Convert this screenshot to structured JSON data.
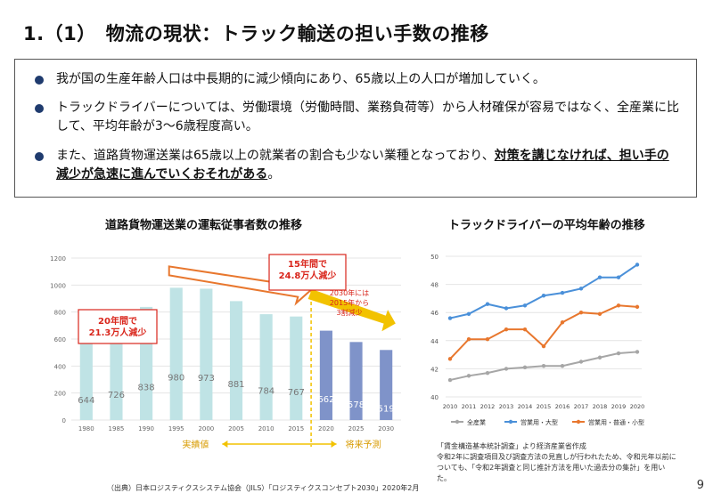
{
  "title": "1.（1）　物流の現状：トラック輸送の担い手数の推移",
  "bullets": [
    {
      "text": "我が国の生産年齢人口は中長期的に減少傾向にあり、65歳以上の人口が増加していく。"
    },
    {
      "text": "トラックドライバーについては、労働環境（労働時間、業務負荷等）から人材確保が容易ではなく、全産業に比して、平均年齢が3～6歳程度高い。"
    },
    {
      "text": "また、道路貨物運送業は65歳以上の就業者の割合も少ない業種となっており、",
      "emph": "対策を講じなければ、担い手の減少が急速に進んでいくおそれがある",
      "tail": "。"
    }
  ],
  "left_chart_title": "道路貨物運送業の運転従事者数の推移",
  "right_chart_title": "トラックドライバーの平均年齢の推移",
  "chart_data": [
    {
      "type": "bar",
      "categories": [
        "1980",
        "1985",
        "1990",
        "1995",
        "2000",
        "2005",
        "2010",
        "2015",
        "2020",
        "2025",
        "2030"
      ],
      "values": [
        644,
        726,
        838,
        980,
        973,
        881,
        784,
        767,
        662,
        578,
        519
      ],
      "ylim": [
        0,
        1200
      ],
      "yticks": [
        0,
        200,
        400,
        600,
        800,
        1000,
        1200
      ],
      "colors": {
        "actual": "#bfe3e5",
        "forecast": "#7f93c9"
      },
      "segments": {
        "actual_label": "実績値",
        "forecast_label": "将来予測"
      },
      "annotations": {
        "past": "20年間で\n21.3万人減少",
        "future": "15年間で\n24.8万人減少",
        "forecast_note": "2030年には\n2015年から\n3割減少"
      }
    },
    {
      "type": "line",
      "x": [
        "2010",
        "2011",
        "2012",
        "2013",
        "2014",
        "2015",
        "2016",
        "2017",
        "2018",
        "2019",
        "2020"
      ],
      "ylim": [
        40,
        50
      ],
      "yticks": [
        40,
        42,
        44,
        46,
        48,
        50
      ],
      "series": [
        {
          "name": "全産業",
          "color": "#a6a6a6",
          "values": [
            41.2,
            41.5,
            41.7,
            42.0,
            42.1,
            42.2,
            42.2,
            42.5,
            42.8,
            43.1,
            43.2
          ]
        },
        {
          "name": "営業用・大型",
          "color": "#4a90d9",
          "values": [
            45.6,
            45.9,
            46.6,
            46.3,
            46.5,
            47.2,
            47.4,
            47.7,
            48.5,
            48.5,
            49.4
          ]
        },
        {
          "name": "営業用・普通・小型",
          "color": "#e8772e",
          "values": [
            42.7,
            44.1,
            44.1,
            44.8,
            44.8,
            43.6,
            45.3,
            46.0,
            45.9,
            46.5,
            46.4
          ]
        }
      ]
    }
  ],
  "left_source": "（出典）日本ロジスティクスシステム協会（JILS）「ロジスティクスコンセプト2030」2020年2月",
  "right_note": "「賃金構造基本統計調査」より経済産業省作成\n令和2年に調査項目及び調査方法の見直しが行われたため、令和元年以前についても、「令和2年調査と同じ推計方法を用いた過去分の集計」を用いた。",
  "page_number": "9"
}
